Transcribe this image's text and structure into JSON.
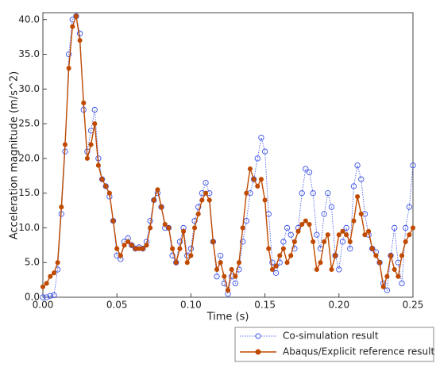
{
  "chart_data": {
    "type": "line",
    "xlabel": "Time (s)",
    "ylabel": "Acceleration magnitude (m/s^2)",
    "x": [
      0,
      0.0025,
      0.005,
      0.0075,
      0.01,
      0.0125,
      0.015,
      0.0175,
      0.02,
      0.0225,
      0.025,
      0.0275,
      0.03,
      0.0325,
      0.035,
      0.0375,
      0.04,
      0.0425,
      0.045,
      0.0475,
      0.05,
      0.0525,
      0.055,
      0.0575,
      0.06,
      0.0625,
      0.065,
      0.0675,
      0.07,
      0.0725,
      0.075,
      0.0775,
      0.08,
      0.0825,
      0.085,
      0.0875,
      0.09,
      0.0925,
      0.095,
      0.0975,
      0.1,
      0.1025,
      0.105,
      0.1075,
      0.11,
      0.1125,
      0.115,
      0.1175,
      0.12,
      0.1225,
      0.125,
      0.1275,
      0.13,
      0.1325,
      0.135,
      0.1375,
      0.14,
      0.1425,
      0.145,
      0.1475,
      0.15,
      0.1525,
      0.155,
      0.1575,
      0.16,
      0.1625,
      0.165,
      0.1675,
      0.17,
      0.1725,
      0.175,
      0.1775,
      0.18,
      0.1825,
      0.185,
      0.1875,
      0.19,
      0.1925,
      0.195,
      0.1975,
      0.2,
      0.2025,
      0.205,
      0.2075,
      0.21,
      0.2125,
      0.215,
      0.2175,
      0.22,
      0.2225,
      0.225,
      0.2275,
      0.23,
      0.2325,
      0.235,
      0.2375,
      0.24,
      0.2425,
      0.245,
      0.2475,
      0.25
    ],
    "series": [
      {
        "name": "Co-simulation result",
        "color": "#3a50e6",
        "marker": "open",
        "dashed": true,
        "values": [
          0,
          0,
          0.2,
          0.3,
          4,
          12,
          21,
          35,
          40,
          40.5,
          38,
          27,
          21,
          24,
          27,
          20,
          17,
          16,
          14.5,
          11,
          6,
          5.5,
          8,
          8.5,
          7.5,
          7,
          7.2,
          7,
          8,
          11,
          14,
          15,
          13,
          10,
          10,
          6,
          5,
          8,
          10,
          6,
          7,
          11,
          13,
          15,
          16.5,
          15,
          8,
          3,
          6,
          2,
          0.5,
          3,
          2,
          4,
          8,
          11,
          15,
          17,
          20,
          23,
          21,
          12,
          5,
          3.5,
          5,
          8,
          10,
          9,
          7,
          10,
          15,
          18.5,
          18,
          15,
          9,
          7,
          12,
          15,
          13,
          6,
          4,
          8,
          10,
          7,
          16,
          19,
          17,
          12,
          9,
          7,
          6.5,
          5,
          2,
          1,
          6,
          10,
          5,
          2,
          10,
          13,
          19
        ]
      },
      {
        "name": "Abaqus/Explicit reference result",
        "color": "#c04a00",
        "marker": "filled",
        "dashed": false,
        "values": [
          1.5,
          2,
          3,
          3.5,
          5,
          13,
          22,
          33,
          39,
          40.5,
          37,
          28,
          20,
          22,
          25,
          19,
          17,
          16,
          15,
          11,
          7,
          6,
          7.5,
          8,
          7.5,
          7,
          7,
          7,
          7.5,
          10,
          14,
          15.5,
          13,
          10.5,
          10,
          7,
          5,
          7,
          9.5,
          5,
          6,
          10,
          12,
          14,
          15,
          14,
          8,
          4,
          5,
          3,
          1,
          4,
          3,
          5,
          10,
          15,
          18.5,
          17,
          16,
          17,
          14,
          7,
          4,
          4.5,
          6,
          7,
          5,
          6,
          8,
          9.5,
          10.5,
          11,
          10.5,
          8,
          4,
          5,
          8,
          9,
          4,
          6,
          9,
          9.5,
          9,
          8,
          11,
          14.5,
          12,
          9,
          9.5,
          7,
          6,
          5,
          1.5,
          3,
          6,
          4,
          3,
          6,
          8,
          9,
          10
        ]
      }
    ],
    "xlim": [
      0,
      0.25
    ],
    "xticks": [
      {
        "value": 0,
        "label": "0.00"
      },
      {
        "value": 0.05,
        "label": "0.05"
      },
      {
        "value": 0.1,
        "label": "0.10"
      },
      {
        "value": 0.15,
        "label": "0.15"
      },
      {
        "value": 0.2,
        "label": "0.20"
      },
      {
        "value": 0.25,
        "label": "0.25"
      }
    ],
    "ylim": [
      0,
      41
    ],
    "yticks": [
      {
        "value": 0,
        "label": "0.0"
      },
      {
        "value": 5,
        "label": "5.0"
      },
      {
        "value": 10,
        "label": "10.0"
      },
      {
        "value": 15,
        "label": "15.0"
      },
      {
        "value": 20,
        "label": "20.0"
      },
      {
        "value": 25,
        "label": "25.0"
      },
      {
        "value": 30,
        "label": "30.0"
      },
      {
        "value": 35,
        "label": "35.0"
      },
      {
        "value": 40,
        "label": "40.0"
      }
    ],
    "legend": "lower right"
  }
}
